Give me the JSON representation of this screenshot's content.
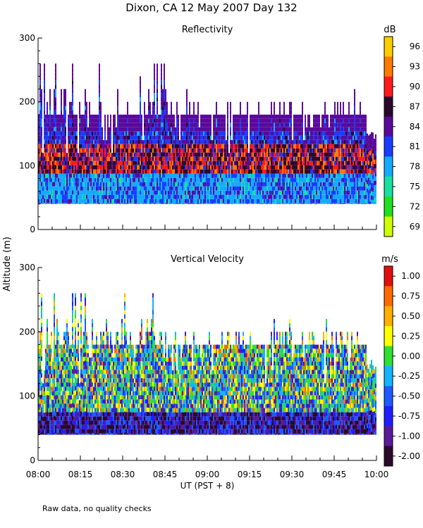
{
  "figure": {
    "title": "Dixon, CA 12 May 2007  Day 132",
    "ylabel": "Altitude (m)",
    "xlabel": "UT  (PST + 8)",
    "footer": "Raw data, no quality checks"
  },
  "chart_data": [
    {
      "type": "heatmap",
      "title": "Reflectivity",
      "x_ticks": [
        "08:00",
        "08:15",
        "08:30",
        "08:45",
        "09:00",
        "09:15",
        "09:30",
        "09:45",
        "10:00"
      ],
      "x_range": [
        "08:00",
        "10:00"
      ],
      "ylim": [
        0,
        300
      ],
      "y_ticks": [
        0,
        100,
        200,
        300
      ],
      "colorbar": {
        "units": "dB",
        "labels": [
          "96",
          "93",
          "90",
          "87",
          "84",
          "81",
          "78",
          "75",
          "72",
          "69"
        ],
        "colors": [
          "#ffcc00",
          "#ff7a00",
          "#ff1a1a",
          "#2a0a2a",
          "#5a0a9a",
          "#1a3cff",
          "#14aaff",
          "#18e0a0",
          "#20e020",
          "#ccff00"
        ]
      },
      "data_extent": {
        "altitude_min_m": 40,
        "altitude_max_m": 260,
        "typical_top_m": 180,
        "core_band_m": [
          90,
          140
        ]
      }
    },
    {
      "type": "heatmap",
      "title": "Vertical Velocity",
      "x_ticks": [
        "08:00",
        "08:15",
        "08:30",
        "08:45",
        "09:00",
        "09:15",
        "09:30",
        "09:45",
        "10:00"
      ],
      "x_range": [
        "08:00",
        "10:00"
      ],
      "ylim": [
        0,
        300
      ],
      "y_ticks": [
        0,
        100,
        200,
        300
      ],
      "colorbar": {
        "units": "m/s",
        "labels": [
          "1.00",
          "0.75",
          "0.50",
          "0.25",
          "0.00",
          "-0.25",
          "-0.50",
          "-0.75",
          "-1.00",
          "-2.00"
        ],
        "colors": [
          "#e01010",
          "#ff6a00",
          "#ffb000",
          "#ffff00",
          "#30e030",
          "#14b4ff",
          "#1e5aff",
          "#1e1eff",
          "#5a1a9a",
          "#2a0a2a"
        ]
      },
      "data_extent": {
        "altitude_min_m": 40,
        "altitude_max_m": 260,
        "typical_top_m": 180,
        "low_level_downdraft_m": [
          40,
          80
        ]
      }
    }
  ]
}
